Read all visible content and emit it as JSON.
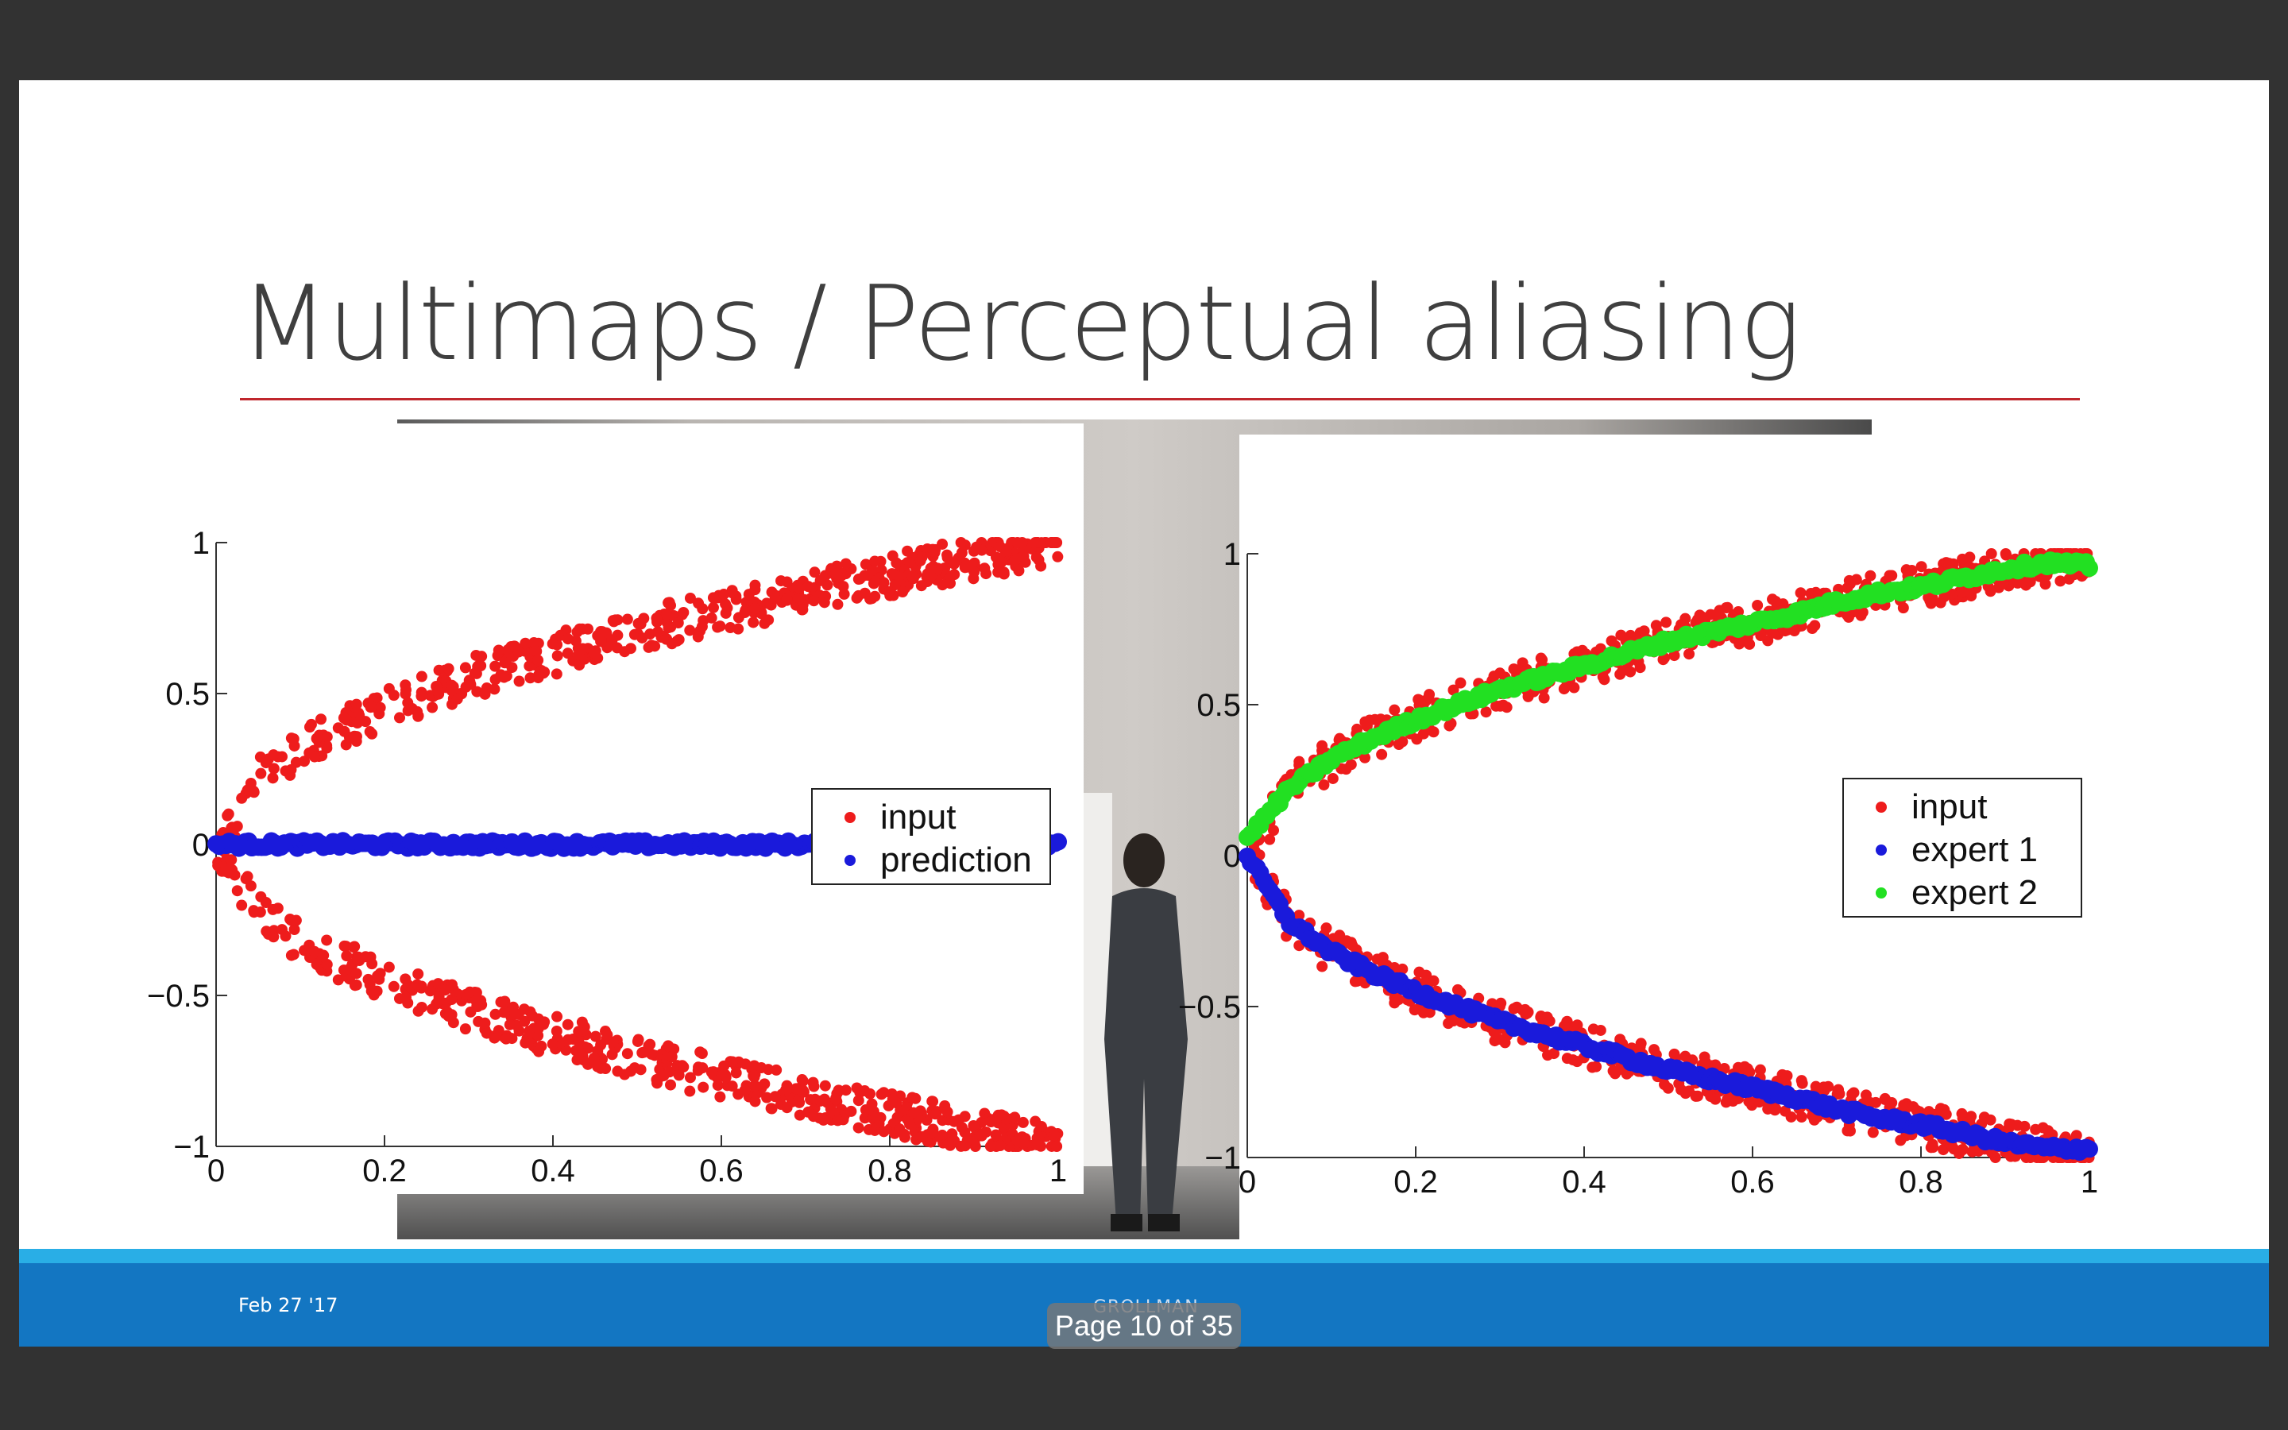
{
  "slide": {
    "title": "Multimaps / Perceptual aliasing",
    "footer": {
      "date": "Feb 27 '17",
      "author": "GROLLMAN"
    }
  },
  "viewer": {
    "page_indicator": "Page 10 of 35"
  },
  "colors": {
    "input": "#ee1c1c",
    "prediction": "#1a1adb",
    "expert1": "#1a1adb",
    "expert2": "#22e022",
    "title_rule": "#c0262d",
    "footer": "#1376c2",
    "footer_stripe": "#29aee6"
  },
  "chart_data": [
    {
      "type": "scatter",
      "xlim": [
        0,
        1
      ],
      "ylim": [
        -1,
        1
      ],
      "xticks": [
        0,
        0.2,
        0.4,
        0.6,
        0.8,
        1
      ],
      "yticks": [
        -1,
        -0.5,
        0,
        0.5,
        1
      ],
      "xtick_labels": [
        "0",
        "0.2",
        "0.4",
        "0.6",
        "0.8",
        "1"
      ],
      "ytick_labels": [
        "−1",
        "−0.5",
        "0",
        "0.5",
        "1"
      ],
      "legend_position": "center-right",
      "series": [
        {
          "name": "input",
          "color": "#ee1c1c",
          "shape": "y = ±sqrt(x) with noise",
          "x": [
            0.0,
            0.05,
            0.1,
            0.15,
            0.2,
            0.25,
            0.3,
            0.35,
            0.4,
            0.45,
            0.5,
            0.55,
            0.6,
            0.65,
            0.7,
            0.75,
            0.8,
            0.85,
            0.9,
            0.95,
            1.0
          ],
          "y_upper": [
            0.0,
            0.22,
            0.32,
            0.39,
            0.45,
            0.5,
            0.55,
            0.59,
            0.63,
            0.67,
            0.71,
            0.74,
            0.77,
            0.8,
            0.84,
            0.87,
            0.89,
            0.92,
            0.95,
            0.97,
            1.0
          ],
          "y_lower": [
            0.0,
            -0.22,
            -0.32,
            -0.39,
            -0.45,
            -0.5,
            -0.55,
            -0.59,
            -0.63,
            -0.67,
            -0.71,
            -0.74,
            -0.77,
            -0.8,
            -0.84,
            -0.87,
            -0.89,
            -0.92,
            -0.95,
            -0.97,
            -1.0
          ]
        },
        {
          "name": "prediction",
          "color": "#1a1adb",
          "x": [
            0,
            0.1,
            0.2,
            0.3,
            0.4,
            0.5,
            0.6,
            0.7,
            0.8,
            0.9,
            1.0
          ],
          "y": [
            0,
            0,
            0,
            0,
            0,
            0,
            0,
            0,
            0,
            0,
            0
          ]
        }
      ]
    },
    {
      "type": "scatter",
      "xlim": [
        0,
        1
      ],
      "ylim": [
        -1,
        1
      ],
      "xticks": [
        0,
        0.2,
        0.4,
        0.6,
        0.8,
        1
      ],
      "yticks": [
        -1,
        -0.5,
        0,
        0.5,
        1
      ],
      "xtick_labels": [
        "0",
        "0.2",
        "0.4",
        "0.6",
        "0.8",
        "1"
      ],
      "ytick_labels": [
        "−1",
        "−0.5",
        "0",
        "0.5",
        "1"
      ],
      "legend_position": "center-right",
      "series": [
        {
          "name": "input",
          "color": "#ee1c1c",
          "shape": "y = ±sqrt(x) with noise",
          "x": [
            0.0,
            0.05,
            0.1,
            0.15,
            0.2,
            0.25,
            0.3,
            0.35,
            0.4,
            0.45,
            0.5,
            0.55,
            0.6,
            0.65,
            0.7,
            0.75,
            0.8,
            0.85,
            0.9,
            0.95,
            1.0
          ],
          "y_upper": [
            0.0,
            0.22,
            0.32,
            0.39,
            0.45,
            0.5,
            0.55,
            0.59,
            0.63,
            0.67,
            0.71,
            0.74,
            0.77,
            0.8,
            0.84,
            0.87,
            0.89,
            0.92,
            0.95,
            0.97,
            1.0
          ],
          "y_lower": [
            0.0,
            -0.22,
            -0.32,
            -0.39,
            -0.45,
            -0.5,
            -0.55,
            -0.59,
            -0.63,
            -0.67,
            -0.71,
            -0.74,
            -0.77,
            -0.8,
            -0.84,
            -0.87,
            -0.89,
            -0.92,
            -0.95,
            -0.97,
            -1.0
          ]
        },
        {
          "name": "expert 1",
          "color": "#1a1adb",
          "x": [
            0.0,
            0.05,
            0.1,
            0.15,
            0.2,
            0.25,
            0.3,
            0.35,
            0.4,
            0.45,
            0.5,
            0.55,
            0.6,
            0.65,
            0.7,
            0.75,
            0.8,
            0.85,
            0.9,
            0.95,
            1.0
          ],
          "y": [
            0.0,
            -0.22,
            -0.32,
            -0.39,
            -0.45,
            -0.5,
            -0.55,
            -0.59,
            -0.63,
            -0.67,
            -0.71,
            -0.74,
            -0.77,
            -0.8,
            -0.84,
            -0.87,
            -0.89,
            -0.92,
            -0.95,
            -0.97,
            -0.97
          ]
        },
        {
          "name": "expert 2",
          "color": "#22e022",
          "x": [
            0.0,
            0.05,
            0.1,
            0.15,
            0.2,
            0.25,
            0.3,
            0.35,
            0.4,
            0.45,
            0.5,
            0.55,
            0.6,
            0.65,
            0.7,
            0.75,
            0.8,
            0.85,
            0.9,
            0.95,
            1.0
          ],
          "y": [
            0.06,
            0.22,
            0.32,
            0.39,
            0.45,
            0.5,
            0.55,
            0.59,
            0.63,
            0.67,
            0.71,
            0.74,
            0.77,
            0.8,
            0.84,
            0.87,
            0.89,
            0.92,
            0.95,
            0.97,
            0.96
          ]
        }
      ]
    }
  ]
}
